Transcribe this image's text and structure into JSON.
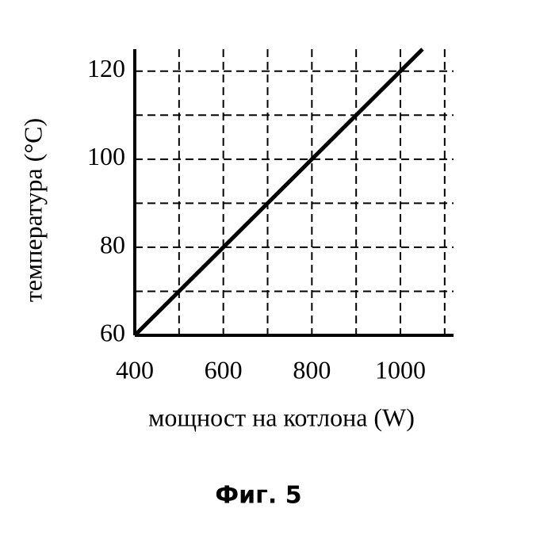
{
  "chart_data": {
    "type": "line",
    "x_label": "мощност на котлона (W)",
    "y_label": "температура  (°C)",
    "caption": "Фиг. 5",
    "xlim": [
      400,
      1120
    ],
    "ylim": [
      60,
      125
    ],
    "xticks": [
      400,
      600,
      800,
      1000
    ],
    "yticks": [
      60,
      80,
      100,
      120
    ],
    "xminor": [
      500,
      700,
      900,
      1100
    ],
    "yminor": [
      70,
      90,
      110
    ],
    "grid": true,
    "series": [
      {
        "name": "температура",
        "color": "#000000",
        "x": [
          400,
          1050
        ],
        "values": [
          60,
          125
        ]
      }
    ]
  }
}
